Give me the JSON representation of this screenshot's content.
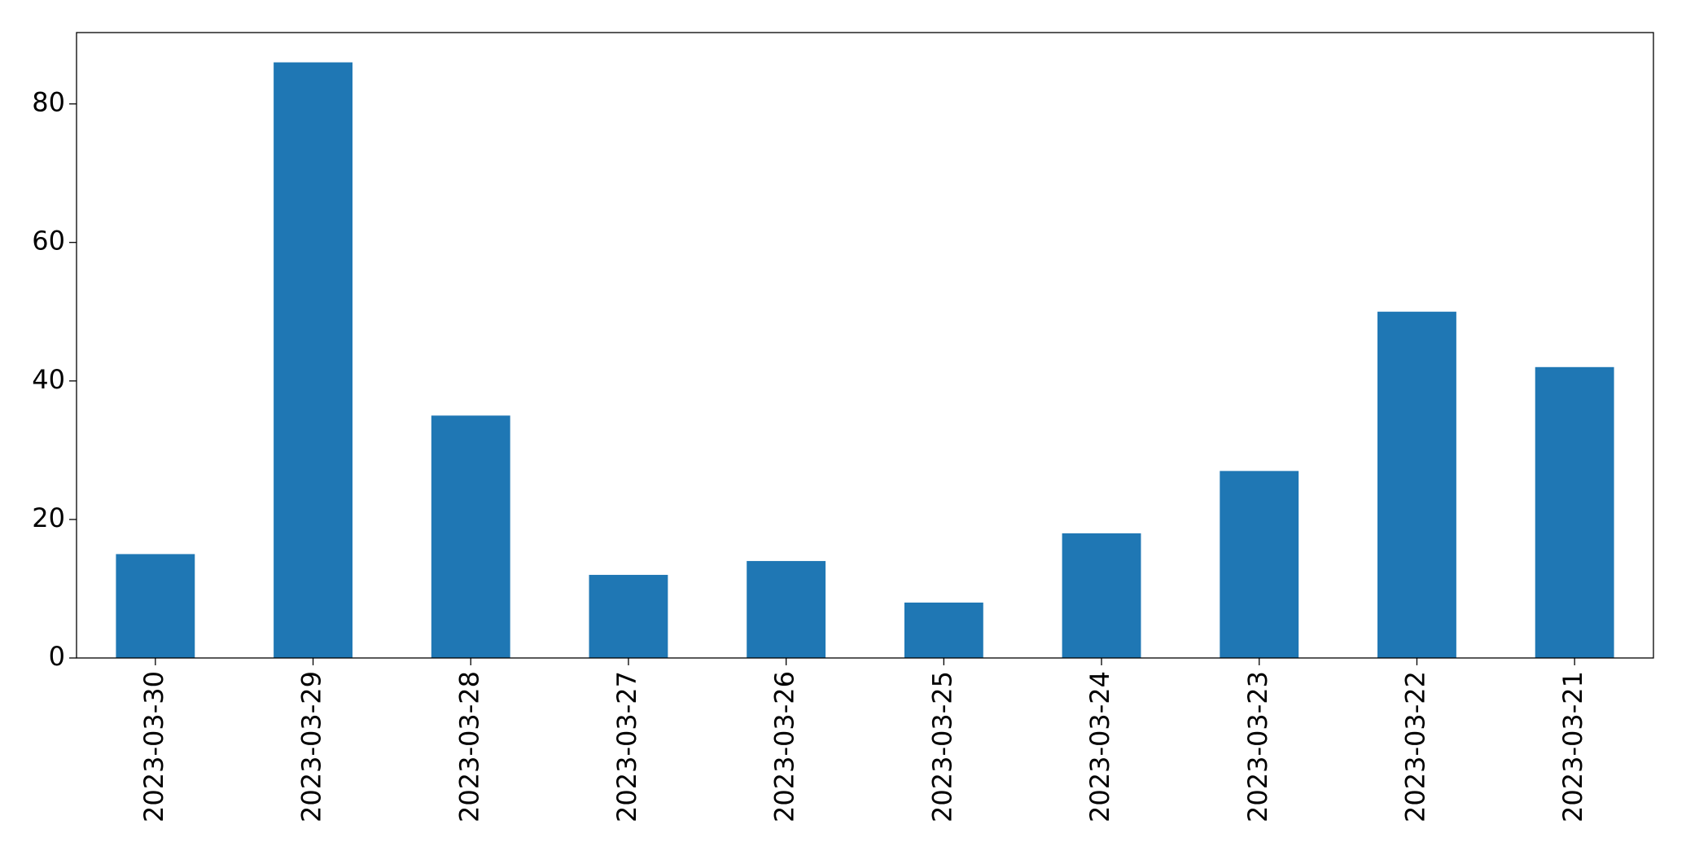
{
  "chart_data": {
    "type": "bar",
    "categories": [
      "2023-03-30",
      "2023-03-29",
      "2023-03-28",
      "2023-03-27",
      "2023-03-26",
      "2023-03-25",
      "2023-03-24",
      "2023-03-23",
      "2023-03-22",
      "2023-03-21"
    ],
    "values": [
      15,
      86,
      35,
      12,
      14,
      8,
      18,
      27,
      50,
      42
    ],
    "color": "#1f77b4",
    "ylim": [
      0,
      90.3
    ],
    "yticks": [
      0,
      20,
      40,
      60,
      80
    ],
    "grid": false
  }
}
